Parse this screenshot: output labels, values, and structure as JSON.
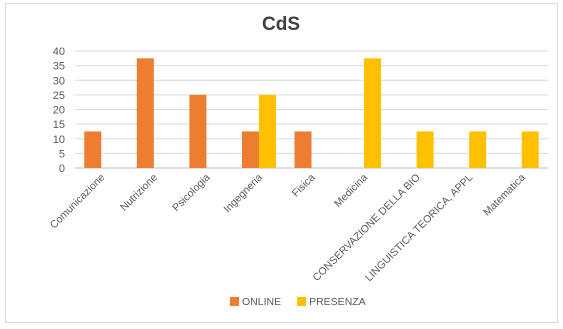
{
  "chart_data": {
    "type": "bar",
    "title": "CdS",
    "xlabel": "",
    "ylabel": "",
    "ylim": [
      0,
      40
    ],
    "yticks": [
      0,
      5,
      10,
      15,
      20,
      25,
      30,
      35,
      40
    ],
    "grid": true,
    "legend_position": "bottom",
    "categories": [
      "Comunicazione",
      "Nutrizione",
      "Psicologia",
      "Ingegneria",
      "Fisica",
      "Medicina",
      "CONSERVAZIONE DELLA BIO",
      "LINGUISTICA TEORICA, APPL",
      "Matematica"
    ],
    "series": [
      {
        "name": "ONLINE",
        "color": "#ed7d31",
        "values": [
          12.5,
          37.5,
          25,
          12.5,
          12.5,
          0,
          0,
          0,
          0
        ]
      },
      {
        "name": "PRESENZA",
        "color": "#ffc000",
        "values": [
          0,
          0,
          0,
          25,
          0,
          37.5,
          12.5,
          12.5,
          12.5
        ]
      }
    ]
  }
}
